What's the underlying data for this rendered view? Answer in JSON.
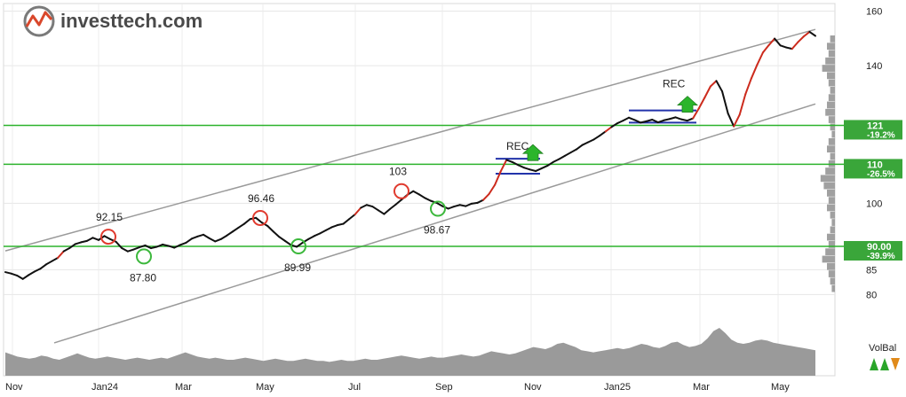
{
  "brand": {
    "name": "investtech.com"
  },
  "colors": {
    "price": "#111111",
    "price_up": "#cc2b1d",
    "channel": "#9a9a9a",
    "level": "#2db32d",
    "level_box": "#3aa63a",
    "volume": "#9a9a9a",
    "top": "#e03a2e",
    "bottom": "#3cb83c",
    "pattern": "#2233aa"
  },
  "chart_data": {
    "type": "line",
    "x_axis": {
      "labels": [
        "Nov",
        "Jan24",
        "Mar",
        "May",
        "Jul",
        "Sep",
        "Nov",
        "Jan25",
        "Mar",
        "May"
      ]
    },
    "y_axis": {
      "scale": "log",
      "ticks": [
        80,
        85,
        90,
        100,
        110,
        121,
        140,
        160
      ],
      "range": [
        78,
        163
      ]
    },
    "grid": true,
    "series": [
      {
        "values": [
          84.5,
          84.2,
          83.8,
          83.1,
          83.9,
          84.6,
          85.2,
          86.1,
          86.8,
          87.5,
          88.9,
          89.6,
          90.5,
          90.9,
          91.2,
          91.9,
          91.4,
          92.3,
          91.6,
          91.0,
          89.6,
          88.9,
          89.3,
          89.8,
          90.2,
          89.6,
          89.9,
          90.4,
          90.1,
          89.7,
          90.3,
          90.8,
          91.7,
          92.2,
          92.6,
          91.8,
          91.1,
          91.6,
          92.4,
          93.3,
          94.2,
          95.1,
          96.2,
          96.5,
          95.4,
          94.6,
          93.3,
          92.1,
          91.2,
          90.3,
          89.9,
          90.8,
          91.6,
          92.3,
          92.9,
          93.6,
          94.3,
          94.8,
          95.1,
          96.2,
          97.3,
          98.9,
          99.6,
          99.2,
          98.3,
          97.4,
          98.6,
          99.7,
          100.9,
          102.1,
          103.0,
          102.2,
          101.3,
          100.6,
          100.1,
          99.3,
          98.7,
          99.2,
          99.6,
          99.3,
          99.9,
          100.1,
          100.8,
          102.3,
          104.6,
          108.1,
          111.2,
          110.6,
          109.8,
          109.1,
          108.6,
          108.2,
          108.9,
          109.6,
          110.6,
          111.4,
          112.3,
          113.2,
          114.1,
          115.3,
          116.1,
          116.9,
          118.0,
          119.2,
          120.5,
          121.6,
          122.4,
          123.3,
          122.6,
          121.8,
          122.2,
          122.7,
          121.9,
          122.5,
          122.9,
          123.4,
          122.8,
          122.4,
          123.1,
          126.1,
          129.5,
          133.1,
          134.9,
          131.5,
          124.6,
          120.7,
          124.2,
          130.6,
          135.7,
          140.3,
          144.6,
          147.2,
          149.6,
          147.1,
          146.4,
          145.9,
          148.3,
          150.4,
          152.1,
          150.6
        ],
        "direction": "up"
      }
    ],
    "annotations": {
      "tops": [
        {
          "label": "92.15",
          "value": 92.15
        },
        {
          "label": "96.46",
          "value": 96.46
        },
        {
          "label": "103",
          "value": 103
        }
      ],
      "bottoms": [
        {
          "label": "87.80",
          "value": 87.8
        },
        {
          "label": "89.99",
          "value": 89.99
        },
        {
          "label": "98.67",
          "value": 98.67
        }
      ],
      "patterns": [
        {
          "label": "REC"
        },
        {
          "label": "REC"
        }
      ]
    },
    "levels": [
      {
        "value": 121,
        "label": "121",
        "pct": "-19.2%"
      },
      {
        "value": 110,
        "label": "110",
        "pct": "-26.5%"
      },
      {
        "value": 90,
        "label": "90.00",
        "pct": "-39.9%"
      }
    ],
    "channel": {
      "upper": {
        "start": 89.0,
        "end": 153.0
      },
      "lower": {
        "start": 77.5,
        "end": 127.5
      }
    },
    "volume": [
      22,
      20,
      18,
      17,
      16,
      17,
      19,
      18,
      16,
      15,
      17,
      19,
      21,
      19,
      17,
      16,
      17,
      18,
      17,
      16,
      15,
      16,
      17,
      16,
      15,
      16,
      17,
      16,
      18,
      20,
      22,
      20,
      18,
      17,
      16,
      17,
      16,
      15,
      15,
      16,
      17,
      16,
      15,
      14,
      15,
      16,
      15,
      14,
      14,
      15,
      16,
      15,
      14,
      14,
      13,
      14,
      15,
      14,
      14,
      15,
      16,
      15,
      15,
      16,
      17,
      18,
      19,
      18,
      17,
      16,
      17,
      18,
      17,
      17,
      18,
      19,
      20,
      19,
      18,
      19,
      21,
      23,
      22,
      21,
      20,
      21,
      23,
      25,
      27,
      26,
      25,
      27,
      30,
      31,
      29,
      27,
      24,
      23,
      22,
      23,
      24,
      25,
      26,
      25,
      26,
      28,
      30,
      29,
      27,
      26,
      28,
      31,
      32,
      29,
      27,
      28,
      30,
      35,
      42,
      45,
      40,
      34,
      31,
      30,
      31,
      33,
      34,
      33,
      31,
      30,
      29,
      28,
      27,
      26,
      25,
      24
    ],
    "volume_label": "VolBal",
    "volume_profile": [
      0.3,
      0.5,
      0.4,
      0.6,
      0.8,
      0.5,
      0.4,
      0.3,
      0.4,
      0.5,
      0.6,
      0.4,
      0.3,
      0.2,
      0.4,
      0.5,
      0.3,
      0.4,
      0.6,
      0.9,
      0.7,
      0.5,
      0.4,
      0.5,
      0.3,
      0.2,
      0.3,
      0.5,
      0.4,
      0.6,
      0.8,
      0.5,
      0.4,
      0.3,
      0.2
    ]
  }
}
